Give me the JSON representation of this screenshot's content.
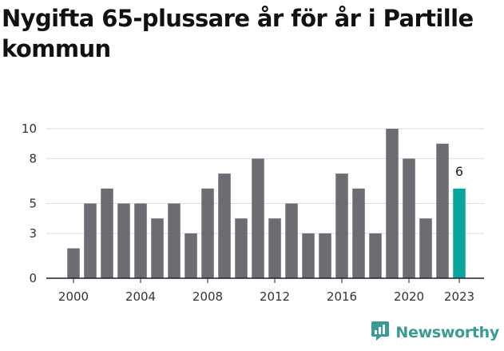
{
  "title": "Nygifta 65-plussare år för år i Partille kommun",
  "brand": {
    "name": "Newsworthy",
    "icon": "newsworthy-logo-icon",
    "color": "#3a9a94"
  },
  "colors": {
    "bar": "#6d6c72",
    "highlight": "#0aa59b",
    "grid": "#dddddd",
    "axis": "#222222"
  },
  "chart_data": {
    "type": "bar",
    "categories": [
      2000,
      2001,
      2002,
      2003,
      2004,
      2005,
      2006,
      2007,
      2008,
      2009,
      2010,
      2011,
      2012,
      2013,
      2014,
      2015,
      2016,
      2017,
      2018,
      2019,
      2020,
      2021,
      2022,
      2023
    ],
    "values": [
      2,
      5,
      6,
      5,
      5,
      4,
      5,
      3,
      6,
      7,
      4,
      8,
      4,
      5,
      3,
      3,
      7,
      6,
      3,
      10,
      8,
      4,
      9,
      6
    ],
    "x_ticks": [
      "2000",
      "2004",
      "2008",
      "2012",
      "2016",
      "2020",
      "2023"
    ],
    "y_ticks": [
      "0",
      "3",
      "5",
      "8",
      "10"
    ],
    "ylim": [
      0,
      10
    ],
    "highlight_index": 23,
    "highlight_label": "6",
    "grid": true,
    "title": "Nygifta 65-plussare år för år i Partille kommun",
    "xlabel": "",
    "ylabel": ""
  }
}
